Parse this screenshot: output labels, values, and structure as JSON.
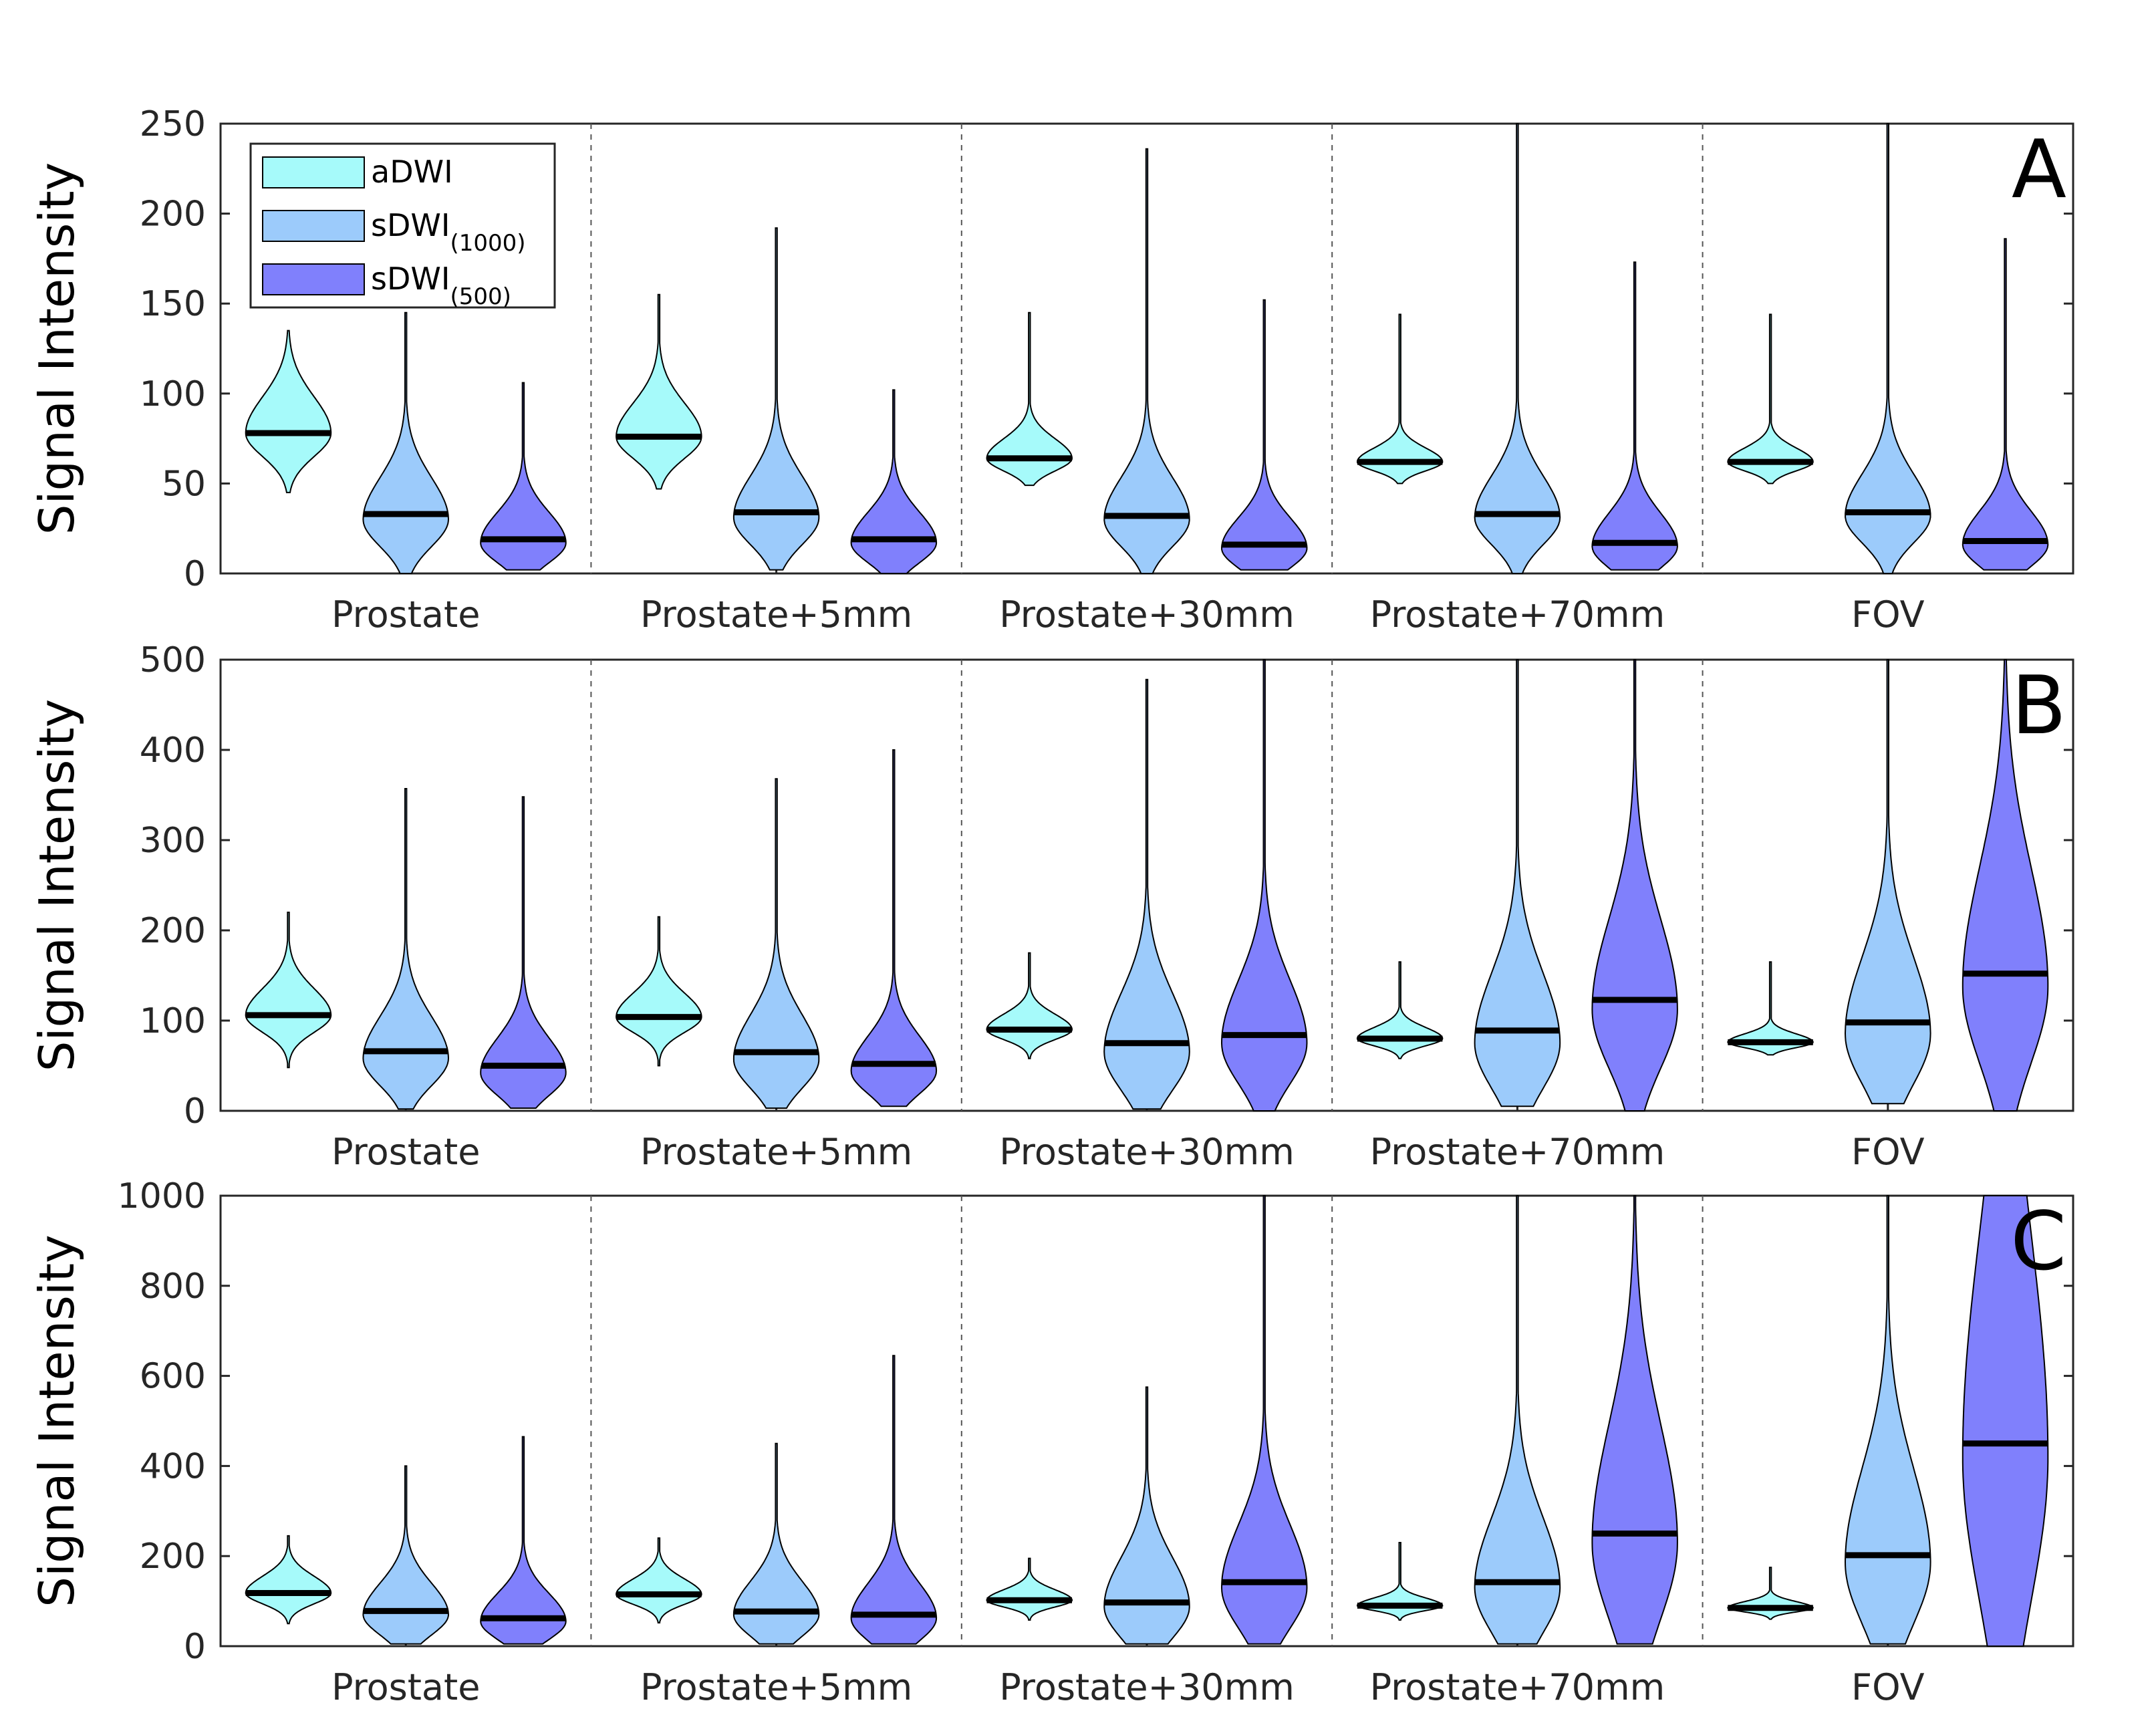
{
  "chart_data": [
    {
      "type": "violin",
      "panel": "A",
      "ylabel": "Signal Intensity",
      "ylim": [
        0,
        250
      ],
      "yticks": [
        0,
        50,
        100,
        150,
        200,
        250
      ],
      "ytick_labels": [
        "0",
        "50",
        "100",
        "150",
        "200",
        "250"
      ],
      "categories": [
        "Prostate",
        "Prostate+5mm",
        "Prostate+30mm",
        "Prostate+70mm",
        "FOV"
      ],
      "legend": {
        "position": "top-left",
        "entries": [
          "aDWI",
          "sDWI(1000)",
          "sDWI(500)"
        ]
      },
      "series": [
        {
          "name": "aDWI",
          "color": "#a6fafa",
          "median": [
            78,
            76,
            64,
            62,
            62
          ],
          "min": [
            45,
            47,
            49,
            50,
            50
          ],
          "max": [
            135,
            155,
            145,
            144,
            144
          ],
          "peak": [
            78,
            76,
            64,
            62,
            62
          ],
          "spread": [
            13,
            12,
            7,
            5,
            5
          ]
        },
        {
          "name": "sDWI(1000)",
          "color": "#9ccbfb",
          "median": [
            33,
            34,
            32,
            33,
            34
          ],
          "min": [
            0,
            2,
            0,
            0,
            0
          ],
          "max": [
            145,
            192,
            236,
            250,
            250
          ],
          "peak": [
            30,
            31,
            30,
            31,
            32
          ],
          "spread": [
            15,
            15,
            15,
            15,
            15
          ]
        },
        {
          "name": "sDWI(500)",
          "color": "#8080fc",
          "median": [
            19,
            19,
            16,
            17,
            18
          ],
          "min": [
            2,
            0,
            2,
            2,
            2
          ],
          "max": [
            106,
            102,
            152,
            173,
            186
          ],
          "peak": [
            17,
            17,
            14,
            15,
            16
          ],
          "spread": [
            11,
            11,
            11,
            12,
            12
          ]
        }
      ]
    },
    {
      "type": "violin",
      "panel": "B",
      "ylabel": "Signal Intensity",
      "ylim": [
        0,
        500
      ],
      "yticks": [
        0,
        100,
        200,
        300,
        400,
        500
      ],
      "ytick_labels": [
        "0",
        "100",
        "200",
        "300",
        "400",
        "500"
      ],
      "categories": [
        "Prostate",
        "Prostate+5mm",
        "Prostate+30mm",
        "Prostate+70mm",
        "FOV"
      ],
      "series": [
        {
          "name": "aDWI",
          "color": "#a6fafa",
          "median": [
            106,
            104,
            90,
            80,
            76
          ],
          "min": [
            48,
            50,
            58,
            58,
            62
          ],
          "max": [
            220,
            215,
            175,
            165,
            165
          ],
          "peak": [
            106,
            104,
            90,
            80,
            76
          ],
          "spread": [
            19,
            17,
            11,
            8,
            6
          ]
        },
        {
          "name": "sDWI(1000)",
          "color": "#9ccbfb",
          "median": [
            66,
            65,
            75,
            89,
            98
          ],
          "min": [
            2,
            3,
            2,
            5,
            8
          ],
          "max": [
            357,
            368,
            478,
            500,
            500
          ],
          "peak": [
            58,
            57,
            65,
            75,
            85
          ],
          "spread": [
            30,
            32,
            42,
            50,
            55
          ]
        },
        {
          "name": "sDWI(500)",
          "color": "#8080fc",
          "median": [
            50,
            52,
            84,
            123,
            152
          ],
          "min": [
            3,
            5,
            0,
            0,
            0
          ],
          "max": [
            348,
            400,
            500,
            500,
            500
          ],
          "peak": [
            42,
            44,
            75,
            112,
            138
          ],
          "spread": [
            25,
            25,
            45,
            65,
            85
          ]
        }
      ]
    },
    {
      "type": "violin",
      "panel": "C",
      "ylabel": "Signal Intensity",
      "ylim": [
        0,
        1000
      ],
      "yticks": [
        0,
        200,
        400,
        600,
        800,
        1000
      ],
      "ytick_labels": [
        "0",
        "200",
        "400",
        "600",
        "800",
        "1000"
      ],
      "categories": [
        "Prostate",
        "Prostate+5mm",
        "Prostate+30mm",
        "Prostate+70mm",
        "FOV"
      ],
      "series": [
        {
          "name": "aDWI",
          "color": "#a6fafa",
          "median": [
            118,
            115,
            102,
            90,
            85
          ],
          "min": [
            50,
            52,
            58,
            58,
            60
          ],
          "max": [
            245,
            240,
            195,
            230,
            175
          ],
          "peak": [
            118,
            115,
            102,
            90,
            85
          ],
          "spread": [
            24,
            22,
            15,
            11,
            9
          ]
        },
        {
          "name": "sDWI(1000)",
          "color": "#9ccbfb",
          "median": [
            78,
            77,
            97,
            142,
            202
          ],
          "min": [
            5,
            5,
            5,
            5,
            5
          ],
          "max": [
            400,
            450,
            575,
            1000,
            1000
          ],
          "peak": [
            70,
            70,
            88,
            130,
            185
          ],
          "spread": [
            45,
            48,
            70,
            100,
            135
          ]
        },
        {
          "name": "sDWI(500)",
          "color": "#8080fc",
          "median": [
            62,
            70,
            142,
            250,
            450
          ],
          "min": [
            5,
            5,
            5,
            5,
            0
          ],
          "max": [
            465,
            645,
            1000,
            1000,
            1000
          ],
          "peak": [
            55,
            62,
            130,
            230,
            420
          ],
          "spread": [
            40,
            50,
            90,
            170,
            320
          ]
        }
      ]
    }
  ]
}
